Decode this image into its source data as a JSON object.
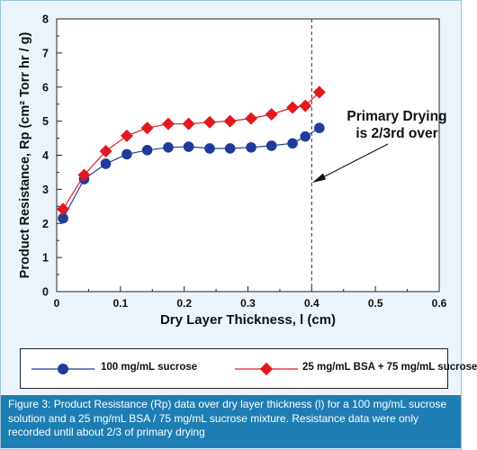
{
  "chart_data": {
    "type": "line",
    "xlabel": "Dry Layer Thickness, l (cm)",
    "ylabel": "Product Resistance, Rp (cm² Torr hr / g)",
    "xlim": [
      0,
      0.6
    ],
    "ylim": [
      0,
      8
    ],
    "xticks": [
      "0",
      "0.1",
      "0.2",
      "0.3",
      "0.4",
      "0.5",
      "0.6"
    ],
    "yticks": [
      "0",
      "1",
      "2",
      "3",
      "4",
      "5",
      "6",
      "7",
      "8"
    ],
    "grid": false,
    "series": [
      {
        "name": "100 mg/mL sucrose",
        "color": "#1f3c9a",
        "marker": "circle",
        "x": [
          0.01,
          0.043,
          0.077,
          0.11,
          0.142,
          0.175,
          0.207,
          0.24,
          0.272,
          0.305,
          0.337,
          0.37,
          0.39,
          0.412
        ],
        "values": [
          2.15,
          3.3,
          3.75,
          4.03,
          4.15,
          4.23,
          4.25,
          4.2,
          4.2,
          4.23,
          4.28,
          4.35,
          4.55,
          4.8
        ]
      },
      {
        "name": "25 mg/mL BSA + 75 mg/mL sucrose",
        "color": "#e2191e",
        "marker": "diamond",
        "x": [
          0.01,
          0.043,
          0.077,
          0.11,
          0.142,
          0.175,
          0.207,
          0.24,
          0.272,
          0.305,
          0.337,
          0.37,
          0.39,
          0.412
        ],
        "values": [
          2.42,
          3.42,
          4.12,
          4.57,
          4.8,
          4.92,
          4.92,
          4.97,
          5.0,
          5.08,
          5.2,
          5.4,
          5.45,
          5.85
        ]
      }
    ],
    "reference_line": {
      "x": 0.4,
      "style": "dashed"
    },
    "annotation": {
      "lines": [
        "Primary Drying",
        "is 2/3rd over"
      ]
    },
    "legend": "bottom"
  },
  "caption": "Figure 3: Product Resistance (Rp) data over dry layer thickness (l) for a 100 mg/mL sucrose solution and a 25 mg/mL BSA / 75 mg/mL sucrose mixture. Resistance data were only recorded until about 2/3 of primary drying"
}
